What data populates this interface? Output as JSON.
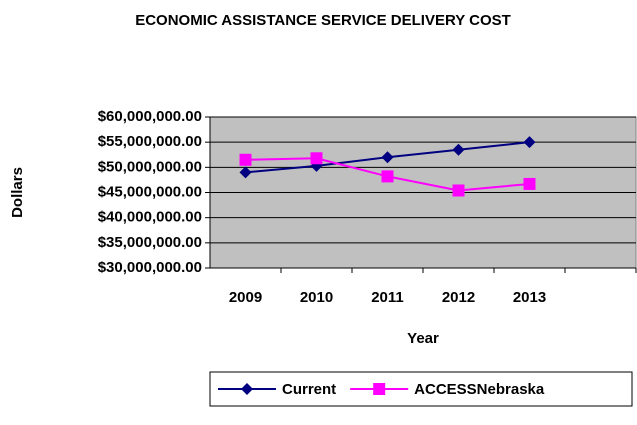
{
  "chart_data": {
    "type": "line",
    "title": "ECONOMIC ASSISTANCE SERVICE DELIVERY COST",
    "x_label": "Year",
    "y_label": "Dollars",
    "categories": [
      "2009",
      "2010",
      "2011",
      "2012",
      "2013",
      null
    ],
    "series": [
      {
        "name": "Current",
        "color": "#000080",
        "marker": "diamond",
        "values": [
          49000000,
          50300000,
          52000000,
          53500000,
          55000000,
          null
        ]
      },
      {
        "name": "ACCESSNebraska",
        "color": "#ff00ff",
        "marker": "square",
        "values": [
          51500000,
          51800000,
          48200000,
          45400000,
          46700000,
          null
        ]
      }
    ],
    "ylim": [
      30000000,
      60000000
    ],
    "yticks": [
      {
        "value": 30000000,
        "label": "$30,000,000.00"
      },
      {
        "value": 35000000,
        "label": "$35,000,000.00"
      },
      {
        "value": 40000000,
        "label": "$40,000,000.00"
      },
      {
        "value": 45000000,
        "label": "$45,000,000.00"
      },
      {
        "value": 50000000,
        "label": "$50,000,000.00"
      },
      {
        "value": 55000000,
        "label": "$55,000,000.00"
      },
      {
        "value": 60000000,
        "label": "$60,000,000.00"
      }
    ],
    "grid": true,
    "plot_background": "#c0c0c0",
    "legend": "bottom"
  }
}
